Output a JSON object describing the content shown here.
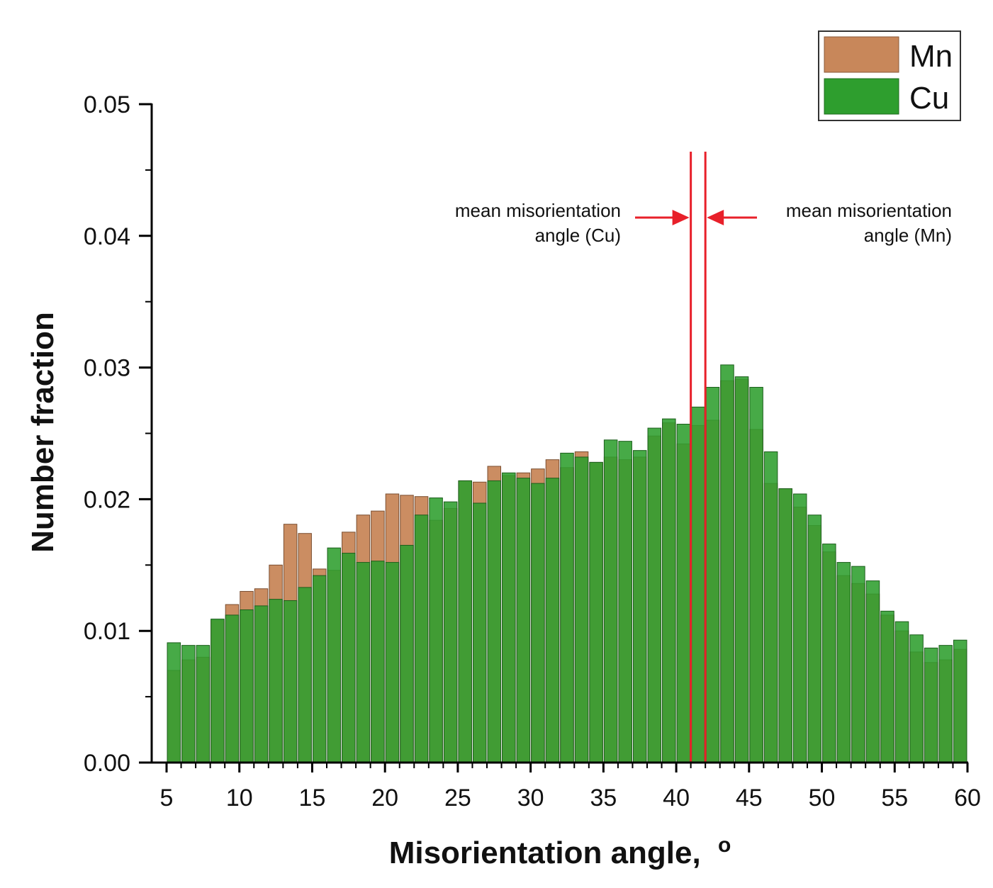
{
  "chart_data": {
    "type": "bar",
    "title": "",
    "xlabel": "Misorientation angle, o",
    "xlabel_text": "Misorientation angle,",
    "xlabel_superscript": "o",
    "ylabel": "Number fraction",
    "xlim": [
      5,
      60
    ],
    "ylim": [
      0,
      0.05
    ],
    "bin_width": 1,
    "x": [
      5.5,
      6.5,
      7.5,
      8.5,
      9.5,
      10.5,
      11.5,
      12.5,
      13.5,
      14.5,
      15.5,
      16.5,
      17.5,
      18.5,
      19.5,
      20.5,
      21.5,
      22.5,
      23.5,
      24.5,
      25.5,
      26.5,
      27.5,
      28.5,
      29.5,
      30.5,
      31.5,
      32.5,
      33.5,
      34.5,
      35.5,
      36.5,
      37.5,
      38.5,
      39.5,
      40.5,
      41.5,
      42.5,
      43.5,
      44.5,
      45.5,
      46.5,
      47.5,
      48.5,
      49.5,
      50.5,
      51.5,
      52.5,
      53.5,
      54.5,
      55.5,
      56.5,
      57.5,
      58.5,
      59.5
    ],
    "xticks": [
      5,
      10,
      15,
      20,
      25,
      30,
      35,
      40,
      45,
      50,
      55,
      60
    ],
    "xtick_labels": [
      "5",
      "10",
      "15",
      "20",
      "25",
      "30",
      "35",
      "40",
      "45",
      "50",
      "55",
      "60"
    ],
    "yticks": [
      0,
      0.01,
      0.02,
      0.03,
      0.04,
      0.05
    ],
    "ytick_labels": [
      "0.00",
      "0.01",
      "0.02",
      "0.03",
      "0.04",
      "0.05"
    ],
    "series": [
      {
        "name": "Mn",
        "color": "#c8875a",
        "values": [
          0.007,
          0.0078,
          0.008,
          0.0108,
          0.012,
          0.013,
          0.0132,
          0.015,
          0.0181,
          0.0174,
          0.0147,
          0.0146,
          0.0175,
          0.0188,
          0.0191,
          0.0204,
          0.0203,
          0.0202,
          0.0184,
          0.0193,
          0.0214,
          0.0213,
          0.0225,
          0.0218,
          0.022,
          0.0223,
          0.023,
          0.0224,
          0.0236,
          0.0228,
          0.0232,
          0.023,
          0.0232,
          0.0248,
          0.0258,
          0.0242,
          0.0256,
          0.026,
          0.029,
          0.0291,
          0.0253,
          0.0212,
          0.0208,
          0.0194,
          0.018,
          0.016,
          0.0142,
          0.0136,
          0.0128,
          0.0112,
          0.01,
          0.0084,
          0.0076,
          0.0078,
          0.0086
        ]
      },
      {
        "name": "Cu",
        "color": "#2e9e2e",
        "values": [
          0.0091,
          0.0089,
          0.0089,
          0.0109,
          0.0112,
          0.0116,
          0.0119,
          0.0124,
          0.0123,
          0.0133,
          0.0142,
          0.0163,
          0.0159,
          0.0152,
          0.0153,
          0.0152,
          0.0165,
          0.0188,
          0.0201,
          0.0198,
          0.0214,
          0.0197,
          0.0214,
          0.022,
          0.0216,
          0.0212,
          0.0216,
          0.0235,
          0.0232,
          0.0228,
          0.0245,
          0.0244,
          0.0237,
          0.0254,
          0.0261,
          0.0257,
          0.027,
          0.0285,
          0.0302,
          0.0293,
          0.0285,
          0.0236,
          0.0208,
          0.0204,
          0.0188,
          0.0166,
          0.0152,
          0.0149,
          0.0138,
          0.0115,
          0.0107,
          0.0097,
          0.0087,
          0.0089,
          0.0093
        ]
      }
    ],
    "reference_lines": [
      {
        "name": "Cu",
        "x": 41.0,
        "color": "#e8202a",
        "label_line1": "mean misorientation",
        "label_line2": "angle  (Cu)"
      },
      {
        "name": "Mn",
        "x": 42.0,
        "color": "#e8202a",
        "label_line1": "mean misorientation",
        "label_line2": "angle  (Mn)"
      }
    ],
    "legend": {
      "position": "top-right",
      "entries": [
        "Mn",
        "Cu"
      ]
    },
    "grid": false
  }
}
